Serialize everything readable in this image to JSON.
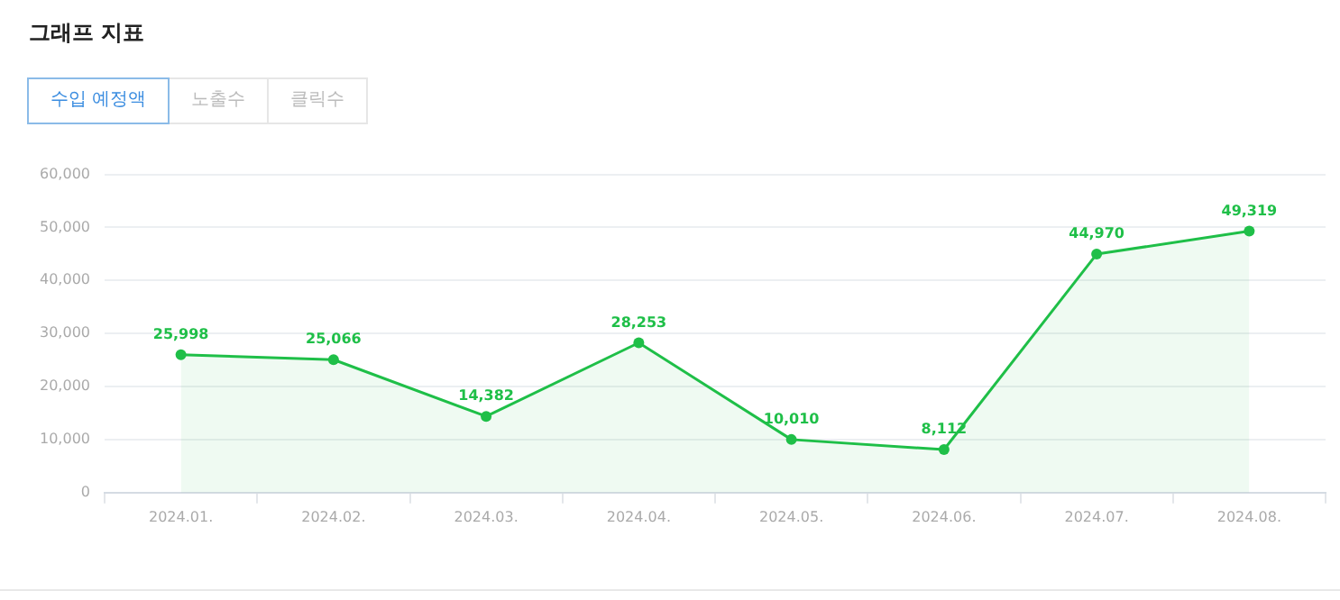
{
  "chart_data": {
    "type": "area",
    "title": "그래프 지표",
    "annotations": [
      "수입 예정액",
      "노출수",
      "클릭수"
    ],
    "categories": [
      "2024.01.",
      "2024.02.",
      "2024.03.",
      "2024.04.",
      "2024.05.",
      "2024.06.",
      "2024.07.",
      "2024.08."
    ],
    "series": [
      {
        "color": "#1fbf48",
        "values": [
          25998,
          25066,
          14382,
          28253,
          10010,
          8112,
          44970,
          49319
        ],
        "value_labels": [
          "25,998",
          "25,066",
          "14,382",
          "28,253",
          "10,010",
          "8,112",
          "44,970",
          "49,319"
        ]
      }
    ],
    "ylim": [
      0,
      60000
    ],
    "yticks": [
      0,
      {
        "value": 10000,
        "label": "10,000"
      },
      {
        "value": 20000,
        "label": "20,000"
      },
      {
        "value": 30000,
        "label": "30,000"
      },
      {
        "value": 40000,
        "label": "40,000"
      },
      {
        "value": 50000,
        "label": "50,000"
      },
      {
        "value": 60000,
        "label": "60,000"
      }
    ],
    "grid": "y",
    "marker": "circle",
    "legend": false
  }
}
